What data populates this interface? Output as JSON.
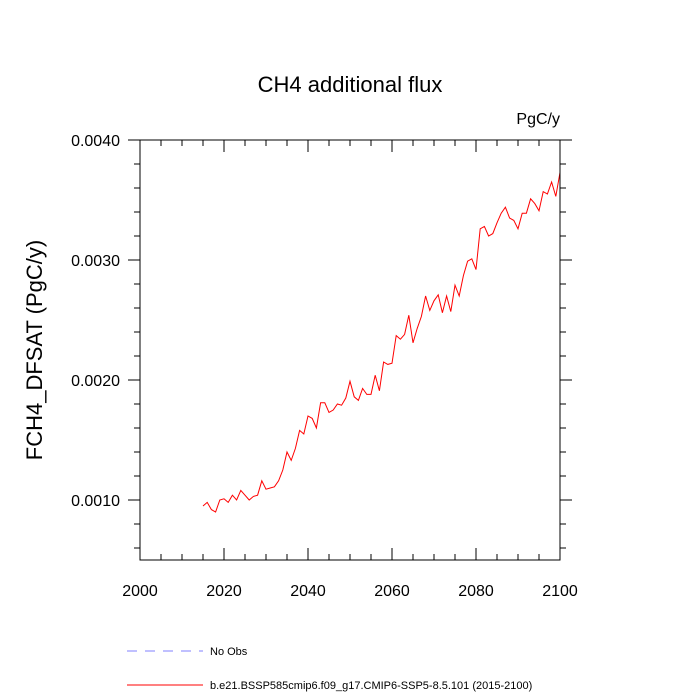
{
  "chart_data": {
    "type": "line",
    "title": "CH4 additional flux",
    "units_label": "PgC/y",
    "ylabel": "FCH4_DFSAT  (PgC/y)",
    "xlabel": "",
    "xlim": [
      2000,
      2100
    ],
    "ylim": [
      0.0005,
      0.004
    ],
    "x_ticks": [
      2000,
      2020,
      2040,
      2060,
      2080,
      2100
    ],
    "x_tick_labels": [
      "2000",
      "2020",
      "2040",
      "2060",
      "2080",
      "2100"
    ],
    "x_minor_step": 5,
    "y_ticks": [
      0.001,
      0.002,
      0.003,
      0.004
    ],
    "y_tick_labels": [
      "0.0010",
      "0.0020",
      "0.0030",
      "0.0040"
    ],
    "y_minor_step": 0.0002,
    "legend": [
      {
        "label": "No Obs",
        "color": "#8080ff",
        "style": "dashed"
      },
      {
        "label": "b.e21.BSSP585cmip6.f09_g17.CMIP6-SSP5-8.5.101 (2015-2100)",
        "color": "#ff0000",
        "style": "solid"
      }
    ],
    "series": [
      {
        "name": "b.e21.BSSP585cmip6.f09_g17.CMIP6-SSP5-8.5.101 (2015-2100)",
        "color": "#ff0000",
        "x_start": 2015,
        "x_step": 1,
        "values": [
          0.00095,
          0.00098,
          0.00092,
          0.0009,
          0.001,
          0.00101,
          0.00098,
          0.00104,
          0.001,
          0.00108,
          0.00104,
          0.001,
          0.00103,
          0.00104,
          0.00116,
          0.00109,
          0.0011,
          0.00111,
          0.00116,
          0.00125,
          0.0014,
          0.00133,
          0.00143,
          0.00158,
          0.00155,
          0.0017,
          0.00168,
          0.0016,
          0.00181,
          0.00181,
          0.00173,
          0.00175,
          0.0018,
          0.00179,
          0.00185,
          0.00199,
          0.00186,
          0.00183,
          0.00193,
          0.00188,
          0.00188,
          0.00204,
          0.00191,
          0.00215,
          0.00213,
          0.00214,
          0.00237,
          0.00234,
          0.00238,
          0.00254,
          0.00231,
          0.00243,
          0.00253,
          0.0027,
          0.00258,
          0.00266,
          0.00271,
          0.00256,
          0.0027,
          0.00257,
          0.00279,
          0.0027,
          0.00287,
          0.00299,
          0.00301,
          0.00292,
          0.00326,
          0.00328,
          0.0032,
          0.00322,
          0.00331,
          0.00339,
          0.00344,
          0.00335,
          0.00333,
          0.00326,
          0.00339,
          0.00339,
          0.00351,
          0.00347,
          0.00341,
          0.00357,
          0.00355,
          0.00365,
          0.00353,
          0.00373
        ]
      }
    ]
  }
}
